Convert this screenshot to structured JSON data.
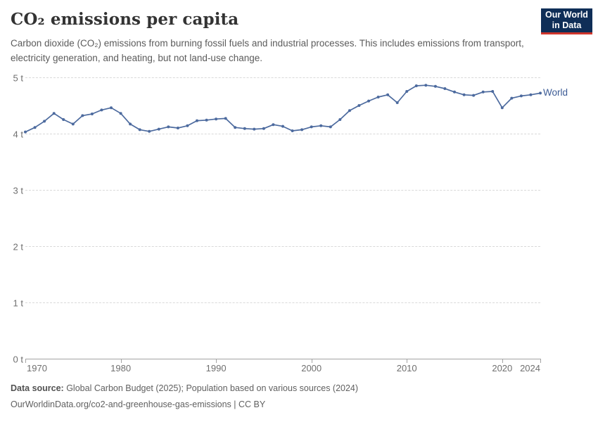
{
  "header": {
    "title": "CO₂ emissions per capita",
    "subtitle": "Carbon dioxide (CO₂) emissions from burning fossil fuels and industrial processes. This includes emissions from transport, electricity generation, and heating, but not land-use change.",
    "logo": {
      "line1": "Our World",
      "line2": "in Data"
    }
  },
  "chart_data": {
    "type": "line",
    "title": "CO₂ emissions per capita",
    "unit": "t",
    "xlabel": "",
    "ylabel": "",
    "xlim": [
      1970,
      2024
    ],
    "ylim": [
      0,
      5
    ],
    "grid": "horizontal dashed",
    "legend_position": "end-of-line label",
    "y_tick_labels": [
      "5 t",
      "4 t",
      "3 t",
      "2 t",
      "1 t",
      "0 t"
    ],
    "y_tick_values": [
      5,
      4,
      3,
      2,
      1,
      0
    ],
    "x_tick_labels": [
      "1970",
      "1980",
      "1990",
      "2000",
      "2010",
      "2020",
      "2024"
    ],
    "x_tick_values": [
      1970,
      1980,
      1990,
      2000,
      2010,
      2020,
      2024
    ],
    "series": [
      {
        "name": "World",
        "color": "#4c6a9e",
        "x": [
          1970,
          1971,
          1972,
          1973,
          1974,
          1975,
          1976,
          1977,
          1978,
          1979,
          1980,
          1981,
          1982,
          1983,
          1984,
          1985,
          1986,
          1987,
          1988,
          1989,
          1990,
          1991,
          1992,
          1993,
          1994,
          1995,
          1996,
          1997,
          1998,
          1999,
          2000,
          2001,
          2002,
          2003,
          2004,
          2005,
          2006,
          2007,
          2008,
          2009,
          2010,
          2011,
          2012,
          2013,
          2014,
          2015,
          2016,
          2017,
          2018,
          2019,
          2020,
          2021,
          2022,
          2023,
          2024
        ],
        "values": [
          4.03,
          4.11,
          4.22,
          4.36,
          4.25,
          4.17,
          4.32,
          4.35,
          4.42,
          4.46,
          4.36,
          4.17,
          4.07,
          4.04,
          4.08,
          4.12,
          4.1,
          4.14,
          4.23,
          4.24,
          4.26,
          4.27,
          4.11,
          4.09,
          4.08,
          4.09,
          4.16,
          4.13,
          4.05,
          4.07,
          4.12,
          4.14,
          4.12,
          4.25,
          4.41,
          4.5,
          4.58,
          4.65,
          4.69,
          4.55,
          4.75,
          4.85,
          4.86,
          4.84,
          4.8,
          4.74,
          4.69,
          4.68,
          4.74,
          4.75,
          4.46,
          4.63,
          4.67,
          4.69,
          4.72
        ]
      }
    ]
  },
  "footer": {
    "source_label": "Data source:",
    "source_text": " Global Carbon Budget (2025); Population based on various sources (2024)",
    "license_line": "OurWorldinData.org/co2-and-greenhouse-gas-emissions | CC BY"
  },
  "colors": {
    "line": "#4c6a9e",
    "series_label": "#3d5c96",
    "logo_background": "#0f2e57",
    "logo_accent_red": "#cf352c",
    "gridline": "#d9d9d9",
    "axis": "#a3a3a3"
  }
}
